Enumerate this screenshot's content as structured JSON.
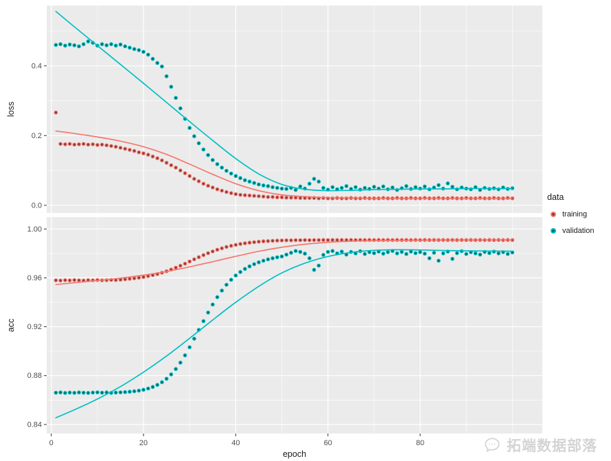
{
  "figure": {
    "legend": {
      "title": "data",
      "items": [
        {
          "label": "training",
          "color": "#F8766D",
          "fill": "#883F3A"
        },
        {
          "label": "validation",
          "color": "#00BFC4",
          "fill": "#006E71"
        }
      ]
    },
    "watermark": {
      "text": "拓端数据部落"
    },
    "colors": {
      "panel_bg": "#EBEBEB",
      "grid": "#FFFFFF",
      "tick_label": "#4D4D4D",
      "axis_title": "#1A1A1A",
      "tick_mark": "#333333"
    }
  },
  "chart_data": {
    "type": "scatter",
    "title": "",
    "x_label": "epoch",
    "x_domain": [
      -1,
      106.5
    ],
    "x_ticks": [
      0,
      20,
      40,
      60,
      80
    ],
    "x_tick_labels": [
      "0",
      "20",
      "40",
      "60",
      "80"
    ],
    "x_minor": [
      10,
      30,
      50,
      70,
      90,
      100
    ],
    "legend_title": "data",
    "series_names": [
      "training",
      "validation"
    ],
    "legend_position": "right",
    "grid": true,
    "facets": [
      {
        "label": "loss",
        "y_domain": [
          -0.022,
          0.573
        ],
        "y_ticks": [
          0.0,
          0.2,
          0.4
        ],
        "y_tick_labels": [
          "0.0",
          "0.2",
          "0.4"
        ],
        "y_minor": [
          0.1,
          0.3,
          0.5
        ],
        "points": {
          "training": [
            0.266,
            0.176,
            0.175,
            0.176,
            0.174,
            0.175,
            0.176,
            0.174,
            0.175,
            0.173,
            0.174,
            0.172,
            0.17,
            0.168,
            0.165,
            0.162,
            0.159,
            0.156,
            0.152,
            0.149,
            0.145,
            0.14,
            0.135,
            0.129,
            0.122,
            0.115,
            0.108,
            0.1,
            0.092,
            0.084,
            0.076,
            0.069,
            0.062,
            0.056,
            0.051,
            0.046,
            0.042,
            0.038,
            0.035,
            0.032,
            0.03,
            0.029,
            0.028,
            0.027,
            0.026,
            0.025,
            0.024,
            0.024,
            0.023,
            0.023,
            0.022,
            0.022,
            0.022,
            0.021,
            0.021,
            0.021,
            0.021,
            0.02,
            0.021,
            0.02,
            0.02,
            0.021,
            0.02,
            0.02,
            0.021,
            0.02,
            0.02,
            0.021,
            0.02,
            0.02,
            0.02,
            0.021,
            0.02,
            0.02,
            0.021,
            0.02,
            0.02,
            0.021,
            0.02,
            0.02,
            0.021,
            0.02,
            0.02,
            0.021,
            0.02,
            0.02,
            0.021,
            0.02,
            0.02,
            0.021,
            0.02,
            0.02,
            0.021,
            0.02,
            0.02,
            0.021,
            0.02,
            0.02,
            0.021,
            0.02
          ],
          "validation": [
            0.46,
            0.462,
            0.458,
            0.461,
            0.459,
            0.456,
            0.462,
            0.47,
            0.466,
            0.458,
            0.462,
            0.459,
            0.462,
            0.458,
            0.461,
            0.456,
            0.452,
            0.448,
            0.445,
            0.44,
            0.432,
            0.42,
            0.408,
            0.398,
            0.37,
            0.34,
            0.308,
            0.278,
            0.248,
            0.222,
            0.198,
            0.178,
            0.16,
            0.144,
            0.13,
            0.118,
            0.108,
            0.099,
            0.091,
            0.084,
            0.078,
            0.072,
            0.068,
            0.064,
            0.06,
            0.057,
            0.055,
            0.052,
            0.05,
            0.048,
            0.047,
            0.05,
            0.044,
            0.054,
            0.048,
            0.062,
            0.076,
            0.068,
            0.05,
            0.045,
            0.052,
            0.046,
            0.05,
            0.055,
            0.047,
            0.052,
            0.045,
            0.05,
            0.047,
            0.053,
            0.048,
            0.054,
            0.046,
            0.051,
            0.044,
            0.049,
            0.055,
            0.047,
            0.052,
            0.048,
            0.054,
            0.046,
            0.051,
            0.058,
            0.048,
            0.063,
            0.053,
            0.046,
            0.051,
            0.048,
            0.046,
            0.052,
            0.044,
            0.05,
            0.047,
            0.049,
            0.046,
            0.051,
            0.047,
            0.049
          ]
        },
        "smooth_x": [
          1,
          5,
          10,
          15,
          20,
          25,
          30,
          35,
          40,
          45,
          50,
          55,
          60,
          65,
          70,
          75,
          80,
          85,
          90,
          95,
          100
        ],
        "smooth": {
          "training": [
            0.213,
            0.206,
            0.196,
            0.184,
            0.168,
            0.146,
            0.118,
            0.089,
            0.062,
            0.042,
            0.03,
            0.025,
            0.022,
            0.021,
            0.02,
            0.02,
            0.02,
            0.02,
            0.02,
            0.02,
            0.02
          ],
          "validation": [
            0.556,
            0.512,
            0.458,
            0.404,
            0.35,
            0.295,
            0.24,
            0.186,
            0.134,
            0.09,
            0.06,
            0.046,
            0.042,
            0.043,
            0.045,
            0.046,
            0.047,
            0.047,
            0.048,
            0.048,
            0.048
          ]
        }
      },
      {
        "label": "acc",
        "y_domain": [
          0.8326,
          1.0097
        ],
        "y_ticks": [
          0.84,
          0.88,
          0.92,
          0.96,
          1.0
        ],
        "y_tick_labels": [
          "0.84",
          "0.88",
          "0.92",
          "0.96",
          "1.00"
        ],
        "y_minor": [
          0.86,
          0.9,
          0.94,
          0.98
        ],
        "points": {
          "training": [
            0.958,
            0.9578,
            0.9581,
            0.9579,
            0.9582,
            0.958,
            0.9578,
            0.9581,
            0.958,
            0.9582,
            0.958,
            0.9581,
            0.9583,
            0.9582,
            0.9585,
            0.9588,
            0.9592,
            0.9596,
            0.9601,
            0.9607,
            0.9614,
            0.9622,
            0.9631,
            0.9642,
            0.9654,
            0.9668,
            0.9683,
            0.9699,
            0.9716,
            0.9734,
            0.9752,
            0.9769,
            0.9786,
            0.9802,
            0.9816,
            0.983,
            0.9842,
            0.9853,
            0.9862,
            0.987,
            0.9877,
            0.9883,
            0.9888,
            0.9892,
            0.9896,
            0.9899,
            0.9901,
            0.9903,
            0.9905,
            0.9906,
            0.9907,
            0.9907,
            0.9908,
            0.9908,
            0.9909,
            0.9908,
            0.9909,
            0.9909,
            0.991,
            0.9909,
            0.991,
            0.9909,
            0.991,
            0.9909,
            0.991,
            0.9909,
            0.991,
            0.9909,
            0.991,
            0.9909,
            0.991,
            0.9909,
            0.991,
            0.9909,
            0.991,
            0.9909,
            0.991,
            0.9909,
            0.991,
            0.9909,
            0.991,
            0.9909,
            0.991,
            0.9909,
            0.991,
            0.9909,
            0.991,
            0.9909,
            0.991,
            0.9909,
            0.991,
            0.9909,
            0.991,
            0.9909,
            0.991,
            0.9909,
            0.991,
            0.9909,
            0.991,
            0.9909
          ],
          "validation": [
            0.866,
            0.8662,
            0.8658,
            0.8661,
            0.8659,
            0.8662,
            0.866,
            0.8658,
            0.8661,
            0.8663,
            0.866,
            0.8662,
            0.8659,
            0.8661,
            0.8663,
            0.8665,
            0.8668,
            0.8672,
            0.8677,
            0.8684,
            0.8694,
            0.8707,
            0.8724,
            0.8746,
            0.8774,
            0.881,
            0.8854,
            0.8906,
            0.8966,
            0.9032,
            0.9102,
            0.9174,
            0.9246,
            0.9316,
            0.9382,
            0.9442,
            0.9496,
            0.9543,
            0.9584,
            0.9619,
            0.9648,
            0.9673,
            0.9694,
            0.9712,
            0.9727,
            0.974,
            0.9751,
            0.976,
            0.9768,
            0.9775,
            0.979,
            0.9805,
            0.982,
            0.9812,
            0.9798,
            0.976,
            0.9665,
            0.97,
            0.9788,
            0.9812,
            0.982,
            0.98,
            0.9815,
            0.979,
            0.9812,
            0.98,
            0.9818,
            0.9795,
            0.981,
            0.9802,
            0.9815,
            0.9798,
            0.981,
            0.982,
            0.98,
            0.9812,
            0.9795,
            0.9815,
            0.9802,
            0.981,
            0.9798,
            0.976,
            0.9805,
            0.974,
            0.98,
            0.9815,
            0.9755,
            0.9802,
            0.9818,
            0.9795,
            0.981,
            0.98,
            0.979,
            0.9812,
            0.9803,
            0.9815,
            0.98,
            0.981,
            0.9795,
            0.9808
          ]
        },
        "smooth_x": [
          1,
          5,
          10,
          15,
          20,
          25,
          30,
          35,
          40,
          45,
          50,
          55,
          60,
          65,
          70,
          75,
          80,
          85,
          90,
          95,
          100
        ],
        "smooth": {
          "training": [
            0.9545,
            0.956,
            0.9578,
            0.9598,
            0.9622,
            0.9652,
            0.969,
            0.9732,
            0.9776,
            0.9817,
            0.985,
            0.9875,
            0.9891,
            0.99,
            0.9905,
            0.9907,
            0.9908,
            0.9909,
            0.9909,
            0.991,
            0.991
          ],
          "validation": [
            0.8455,
            0.852,
            0.8608,
            0.871,
            0.8828,
            0.896,
            0.9105,
            0.9255,
            0.94,
            0.953,
            0.964,
            0.972,
            0.9775,
            0.9808,
            0.9825,
            0.983,
            0.9828,
            0.9824,
            0.9821,
            0.9819,
            0.9818
          ]
        }
      }
    ]
  }
}
